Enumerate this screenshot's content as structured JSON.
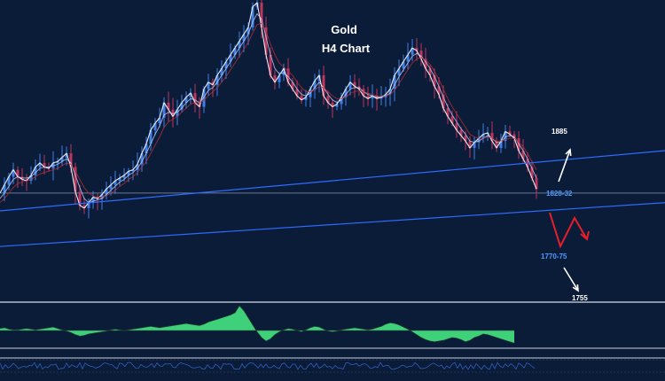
{
  "chart_data": {
    "type": "line",
    "title": "Gold",
    "subtitle": "H4 Chart",
    "instrument": "Gold",
    "timeframe": "H4",
    "y_range": [
      1740,
      1960
    ],
    "x": [
      0,
      5,
      10,
      15,
      20,
      25,
      30,
      35,
      40,
      45,
      50,
      55,
      60,
      65,
      70,
      75,
      80,
      85,
      90,
      95,
      100,
      105,
      110,
      115,
      120,
      125,
      130,
      135,
      140,
      145,
      150,
      155,
      160,
      165,
      170,
      175,
      180,
      185,
      190,
      195,
      200,
      205,
      210,
      215,
      220,
      225,
      230,
      235,
      240,
      245,
      250,
      255,
      260,
      265,
      270,
      275,
      280,
      285,
      290,
      295,
      300,
      305,
      310,
      315,
      320,
      325,
      330,
      335,
      340,
      345,
      350,
      355,
      360,
      365,
      370,
      375,
      380,
      385,
      390,
      395,
      400,
      405,
      410,
      415,
      420,
      425,
      430,
      435,
      440,
      445,
      450,
      455,
      460,
      465,
      470,
      475,
      480,
      485,
      490,
      495,
      500,
      505,
      510,
      515,
      520,
      525,
      530,
      535,
      540,
      545,
      550,
      555,
      560,
      565,
      570,
      575,
      580,
      585,
      590,
      595,
      600,
      605
    ],
    "series": [
      {
        "values": [
          1819,
          1825,
          1831,
          1836,
          1831,
          1829,
          1828,
          1832,
          1838,
          1841,
          1838,
          1837,
          1841,
          1842,
          1845,
          1848,
          1838,
          1820,
          1810,
          1808,
          1812,
          1816,
          1815,
          1818,
          1822,
          1825,
          1828,
          1830,
          1832,
          1835,
          1836,
          1840,
          1848,
          1855,
          1865,
          1870,
          1874,
          1885,
          1880,
          1875,
          1880,
          1885,
          1889,
          1892,
          1885,
          1882,
          1895,
          1900,
          1898,
          1905,
          1910,
          1915,
          1920,
          1925,
          1930,
          1935,
          1940,
          1955,
          1958,
          1940,
          1920,
          1905,
          1900,
          1905,
          1910,
          1900,
          1895,
          1890,
          1887,
          1889,
          1895,
          1901,
          1905,
          1890,
          1885,
          1882,
          1884,
          1889,
          1895,
          1900,
          1897,
          1895,
          1890,
          1888,
          1890,
          1888,
          1889,
          1891,
          1895,
          1905,
          1910,
          1915,
          1920,
          1925,
          1923,
          1917,
          1910,
          1905,
          1897,
          1891,
          1881,
          1875,
          1870,
          1865,
          1861,
          1857,
          1852,
          1856,
          1859,
          1862,
          1863,
          1857,
          1852,
          1857,
          1864,
          1862,
          1859,
          1850,
          1844,
          1838,
          1830,
          1822
        ]
      },
      {
        "values": [
          1815,
          1819,
          1824,
          1829,
          1831,
          1830,
          1830,
          1831,
          1834,
          1837,
          1838,
          1838,
          1839,
          1840,
          1842,
          1844,
          1841,
          1832,
          1823,
          1815,
          1812,
          1813,
          1814,
          1815,
          1818,
          1821,
          1824,
          1827,
          1829,
          1832,
          1834,
          1837,
          1842,
          1848,
          1855,
          1862,
          1868,
          1876,
          1878,
          1877,
          1878,
          1881,
          1885,
          1888,
          1887,
          1885,
          1889,
          1894,
          1896,
          1900,
          1905,
          1910,
          1915,
          1920,
          1925,
          1930,
          1935,
          1944,
          1950,
          1946,
          1933,
          1920,
          1910,
          1906,
          1907,
          1904,
          1900,
          1895,
          1891,
          1890,
          1892,
          1896,
          1900,
          1896,
          1891,
          1887,
          1885,
          1887,
          1891,
          1895,
          1896,
          1896,
          1893,
          1891,
          1890,
          1889,
          1889,
          1890,
          1892,
          1898,
          1904,
          1909,
          1914,
          1919,
          1921,
          1919,
          1915,
          1910,
          1904,
          1897,
          1889,
          1882,
          1876,
          1871,
          1866,
          1862,
          1857,
          1856,
          1857,
          1859,
          1861,
          1859,
          1856,
          1856,
          1860,
          1861,
          1860,
          1855,
          1850,
          1844,
          1837,
          1830
        ]
      },
      {
        "values": [
          1812,
          1815,
          1819,
          1823,
          1826,
          1827,
          1828,
          1829,
          1831,
          1833,
          1834,
          1835,
          1836,
          1837,
          1839,
          1841,
          1840,
          1835,
          1829,
          1823,
          1819,
          1817,
          1816,
          1816,
          1817,
          1819,
          1821,
          1824,
          1826,
          1829,
          1831,
          1834,
          1838,
          1842,
          1848,
          1854,
          1860,
          1867,
          1871,
          1873,
          1875,
          1878,
          1881,
          1884,
          1885,
          1885,
          1887,
          1890,
          1893,
          1896,
          1900,
          1904,
          1909,
          1914,
          1919,
          1924,
          1929,
          1936,
          1942,
          1943,
          1937,
          1928,
          1920,
          1914,
          1911,
          1908,
          1905,
          1900,
          1896,
          1893,
          1893,
          1894,
          1897,
          1896,
          1893,
          1890,
          1888,
          1888,
          1889,
          1892,
          1893,
          1894,
          1893,
          1892,
          1891,
          1890,
          1890,
          1890,
          1891,
          1894,
          1899,
          1904,
          1909,
          1914,
          1917,
          1918,
          1916,
          1913,
          1908,
          1902,
          1895,
          1888,
          1882,
          1877,
          1872,
          1867,
          1862,
          1860,
          1859,
          1859,
          1860,
          1859,
          1857,
          1857,
          1858,
          1859,
          1859,
          1856,
          1853,
          1848,
          1842,
          1836
        ]
      }
    ],
    "trendlines": [
      {
        "points": [
          [
            0,
            1806
          ],
          [
            750,
            1850
          ]
        ],
        "color": "#2f6bff"
      },
      {
        "points": [
          [
            0,
            1780
          ],
          [
            750,
            1812
          ]
        ],
        "color": "#2f6bff"
      }
    ],
    "horizontal_line": 1819,
    "annotations": [
      {
        "label": "1885",
        "style": "white"
      },
      {
        "label": "1828-32",
        "style": "blue"
      },
      {
        "label": "1770-75",
        "style": "blue"
      },
      {
        "label": "1755",
        "style": "white"
      }
    ],
    "forecast": {
      "up_color": "#ffffff",
      "down_color": "#ffffff",
      "zigzag_color": "#e5202a"
    },
    "oscillator": {
      "type": "histogram",
      "color": "#3fd07a",
      "values": [
        0.3,
        0.4,
        0.2,
        0.1,
        0.1,
        0.2,
        0.3,
        0.2,
        0.1,
        0.2,
        0.3,
        0.4,
        0.5,
        0.3,
        0.1,
        -0.1,
        -0.3,
        -0.6,
        -0.8,
        -0.7,
        -0.5,
        -0.4,
        -0.3,
        -0.2,
        -0.1,
        0.1,
        0.2,
        0.1,
        0.0,
        0.1,
        0.2,
        0.3,
        0.4,
        0.5,
        0.6,
        0.5,
        0.4,
        0.5,
        0.6,
        0.7,
        0.8,
        0.9,
        1.0,
        0.9,
        0.8,
        0.7,
        0.9,
        1.2,
        1.4,
        1.6,
        1.8,
        2.0,
        2.2,
        2.5,
        3.5,
        2.8,
        1.8,
        0.8,
        -0.2,
        -1.0,
        -1.5,
        -1.2,
        -0.6,
        -0.2,
        0.1,
        0.3,
        0.2,
        0.0,
        -0.2,
        0.1,
        0.4,
        0.6,
        0.5,
        0.2,
        -0.1,
        -0.2,
        -0.1,
        0.1,
        0.2,
        0.3,
        0.4,
        0.3,
        0.2,
        0.1,
        0.2,
        0.4,
        0.6,
        0.9,
        1.1,
        1.0,
        0.8,
        0.5,
        0.2,
        -0.2,
        -0.6,
        -1.0,
        -1.3,
        -1.5,
        -1.6,
        -1.5,
        -1.4,
        -1.2,
        -1.0,
        -1.1,
        -1.3,
        -1.6,
        -1.4,
        -1.0,
        -0.8,
        -0.5,
        -0.6,
        -0.8,
        -1.0,
        -1.2,
        -1.4,
        -1.6,
        -1.8
      ]
    },
    "colors": {
      "background": "#0b1c39",
      "candle_up": "#3f7fe8",
      "candle_down": "#c0355c",
      "ma_fast": "#ffffff",
      "ma_mid": "#c9d2ff",
      "ma_slow": "#c03030",
      "separator": "#8a94a8",
      "rsi_line": "#2e5fbf"
    }
  }
}
